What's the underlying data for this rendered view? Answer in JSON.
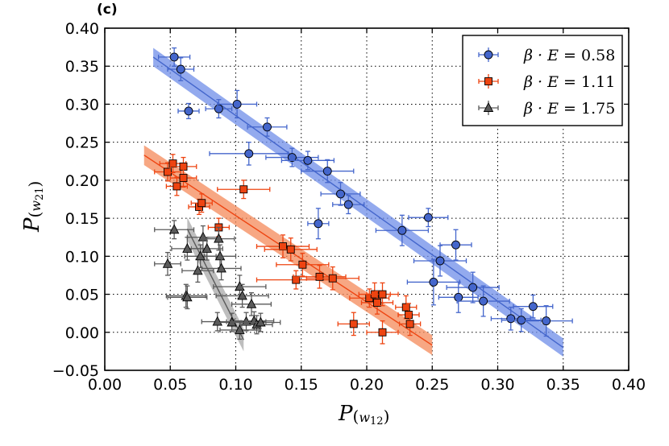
{
  "panel_label": "(c)",
  "chart_data": {
    "type": "scatter",
    "title": "",
    "xlabel": "P(w12)",
    "ylabel": "P(w21)",
    "xlim": [
      0.0,
      0.4
    ],
    "ylim": [
      -0.05,
      0.4
    ],
    "xticks": [
      0.0,
      0.05,
      0.1,
      0.15,
      0.2,
      0.25,
      0.3,
      0.35,
      0.4
    ],
    "yticks": [
      -0.05,
      0.0,
      0.05,
      0.1,
      0.15,
      0.2,
      0.25,
      0.3,
      0.35,
      0.4
    ],
    "xtick_labels": [
      "0.00",
      "0.05",
      "0.10",
      "0.15",
      "0.20",
      "0.25",
      "0.30",
      "0.35",
      "0.40"
    ],
    "ytick_labels": [
      "−0.05",
      "0.00",
      "0.05",
      "0.10",
      "0.15",
      "0.20",
      "0.25",
      "0.30",
      "0.35",
      "0.40"
    ],
    "grid": true,
    "legend_position": "top-right",
    "series": [
      {
        "name": "β·E = 0.58",
        "label_prefix": "β · E = ",
        "label_value": "0.58",
        "marker": "circle",
        "color": "#4466cc",
        "band_color": "#6f8ee8",
        "fit": {
          "x": [
            0.037,
            0.35
          ],
          "y": [
            0.362,
            -0.02
          ],
          "band_halfwidth": 0.012
        },
        "points": [
          {
            "x": 0.053,
            "y": 0.362,
            "xerr": 0.012,
            "yerr": 0.012
          },
          {
            "x": 0.058,
            "y": 0.346,
            "xerr": 0.01,
            "yerr": 0.015
          },
          {
            "x": 0.064,
            "y": 0.291,
            "xerr": 0.008,
            "yerr": 0.01
          },
          {
            "x": 0.087,
            "y": 0.294,
            "xerr": 0.01,
            "yerr": 0.012
          },
          {
            "x": 0.101,
            "y": 0.3,
            "xerr": 0.015,
            "yerr": 0.018
          },
          {
            "x": 0.124,
            "y": 0.27,
            "xerr": 0.015,
            "yerr": 0.012
          },
          {
            "x": 0.11,
            "y": 0.235,
            "xerr": 0.03,
            "yerr": 0.015
          },
          {
            "x": 0.143,
            "y": 0.23,
            "xerr": 0.02,
            "yerr": 0.012
          },
          {
            "x": 0.155,
            "y": 0.226,
            "xerr": 0.02,
            "yerr": 0.012
          },
          {
            "x": 0.17,
            "y": 0.212,
            "xerr": 0.02,
            "yerr": 0.015
          },
          {
            "x": 0.18,
            "y": 0.182,
            "xerr": 0.015,
            "yerr": 0.015
          },
          {
            "x": 0.186,
            "y": 0.168,
            "xerr": 0.012,
            "yerr": 0.012
          },
          {
            "x": 0.163,
            "y": 0.143,
            "xerr": 0.008,
            "yerr": 0.02
          },
          {
            "x": 0.227,
            "y": 0.134,
            "xerr": 0.02,
            "yerr": 0.02
          },
          {
            "x": 0.247,
            "y": 0.151,
            "xerr": 0.015,
            "yerr": 0.012
          },
          {
            "x": 0.268,
            "y": 0.115,
            "xerr": 0.012,
            "yerr": 0.02
          },
          {
            "x": 0.256,
            "y": 0.094,
            "xerr": 0.02,
            "yerr": 0.02
          },
          {
            "x": 0.251,
            "y": 0.066,
            "xerr": 0.02,
            "yerr": 0.03
          },
          {
            "x": 0.27,
            "y": 0.046,
            "xerr": 0.015,
            "yerr": 0.02
          },
          {
            "x": 0.281,
            "y": 0.059,
            "xerr": 0.02,
            "yerr": 0.02
          },
          {
            "x": 0.289,
            "y": 0.041,
            "xerr": 0.02,
            "yerr": 0.02
          },
          {
            "x": 0.31,
            "y": 0.018,
            "xerr": 0.015,
            "yerr": 0.015
          },
          {
            "x": 0.318,
            "y": 0.016,
            "xerr": 0.015,
            "yerr": 0.015
          },
          {
            "x": 0.327,
            "y": 0.034,
            "xerr": 0.015,
            "yerr": 0.015
          },
          {
            "x": 0.337,
            "y": 0.015,
            "xerr": 0.02,
            "yerr": 0.02
          }
        ]
      },
      {
        "name": "β·E = 1.11",
        "label_prefix": "β · E = ",
        "label_value": "1.11",
        "marker": "square",
        "color": "#ee4411",
        "band_color": "#f48a5a",
        "fit": {
          "x": [
            0.03,
            0.25
          ],
          "y": [
            0.233,
            -0.017
          ],
          "band_halfwidth": 0.013
        },
        "points": [
          {
            "x": 0.048,
            "y": 0.211,
            "xerr": 0.01,
            "yerr": 0.012
          },
          {
            "x": 0.052,
            "y": 0.222,
            "xerr": 0.01,
            "yerr": 0.012
          },
          {
            "x": 0.055,
            "y": 0.192,
            "xerr": 0.008,
            "yerr": 0.012
          },
          {
            "x": 0.06,
            "y": 0.218,
            "xerr": 0.01,
            "yerr": 0.012
          },
          {
            "x": 0.06,
            "y": 0.203,
            "xerr": 0.01,
            "yerr": 0.012
          },
          {
            "x": 0.072,
            "y": 0.165,
            "xerr": 0.008,
            "yerr": 0.01
          },
          {
            "x": 0.074,
            "y": 0.17,
            "xerr": 0.008,
            "yerr": 0.012
          },
          {
            "x": 0.087,
            "y": 0.138,
            "xerr": 0.008,
            "yerr": 0.012
          },
          {
            "x": 0.106,
            "y": 0.188,
            "xerr": 0.02,
            "yerr": 0.012
          },
          {
            "x": 0.136,
            "y": 0.113,
            "xerr": 0.02,
            "yerr": 0.015
          },
          {
            "x": 0.142,
            "y": 0.109,
            "xerr": 0.02,
            "yerr": 0.015
          },
          {
            "x": 0.151,
            "y": 0.089,
            "xerr": 0.02,
            "yerr": 0.015
          },
          {
            "x": 0.146,
            "y": 0.069,
            "xerr": 0.03,
            "yerr": 0.012
          },
          {
            "x": 0.164,
            "y": 0.073,
            "xerr": 0.02,
            "yerr": 0.015
          },
          {
            "x": 0.174,
            "y": 0.071,
            "xerr": 0.02,
            "yerr": 0.015
          },
          {
            "x": 0.202,
            "y": 0.045,
            "xerr": 0.015,
            "yerr": 0.012
          },
          {
            "x": 0.206,
            "y": 0.05,
            "xerr": 0.012,
            "yerr": 0.015
          },
          {
            "x": 0.208,
            "y": 0.039,
            "xerr": 0.012,
            "yerr": 0.015
          },
          {
            "x": 0.212,
            "y": 0.05,
            "xerr": 0.012,
            "yerr": 0.015
          },
          {
            "x": 0.19,
            "y": 0.011,
            "xerr": 0.012,
            "yerr": 0.015
          },
          {
            "x": 0.212,
            "y": 0.0,
            "xerr": 0.012,
            "yerr": 0.015
          },
          {
            "x": 0.23,
            "y": 0.033,
            "xerr": 0.008,
            "yerr": 0.015
          },
          {
            "x": 0.232,
            "y": 0.023,
            "xerr": 0.008,
            "yerr": 0.015
          },
          {
            "x": 0.233,
            "y": 0.011,
            "xerr": 0.008,
            "yerr": 0.015
          }
        ]
      },
      {
        "name": "β·E = 1.75",
        "label_prefix": "β · E = ",
        "label_value": "1.75",
        "marker": "triangle",
        "color": "#5a5a5a",
        "band_color": "#a8a8a8",
        "fit": {
          "x": [
            0.063,
            0.106
          ],
          "y": [
            0.136,
            -0.01
          ],
          "band_halfwidth": 0.015
        },
        "points": [
          {
            "x": 0.053,
            "y": 0.135,
            "xerr": 0.015,
            "yerr": 0.012
          },
          {
            "x": 0.048,
            "y": 0.09,
            "xerr": 0.01,
            "yerr": 0.015
          },
          {
            "x": 0.063,
            "y": 0.11,
            "xerr": 0.012,
            "yerr": 0.015
          },
          {
            "x": 0.062,
            "y": 0.048,
            "xerr": 0.015,
            "yerr": 0.015
          },
          {
            "x": 0.063,
            "y": 0.046,
            "xerr": 0.015,
            "yerr": 0.015
          },
          {
            "x": 0.071,
            "y": 0.081,
            "xerr": 0.012,
            "yerr": 0.015
          },
          {
            "x": 0.073,
            "y": 0.1,
            "xerr": 0.012,
            "yerr": 0.015
          },
          {
            "x": 0.075,
            "y": 0.125,
            "xerr": 0.012,
            "yerr": 0.015
          },
          {
            "x": 0.078,
            "y": 0.11,
            "xerr": 0.012,
            "yerr": 0.015
          },
          {
            "x": 0.087,
            "y": 0.123,
            "xerr": 0.012,
            "yerr": 0.015
          },
          {
            "x": 0.088,
            "y": 0.1,
            "xerr": 0.012,
            "yerr": 0.015
          },
          {
            "x": 0.089,
            "y": 0.084,
            "xerr": 0.015,
            "yerr": 0.015
          },
          {
            "x": 0.086,
            "y": 0.014,
            "xerr": 0.012,
            "yerr": 0.012
          },
          {
            "x": 0.097,
            "y": 0.013,
            "xerr": 0.012,
            "yerr": 0.012
          },
          {
            "x": 0.103,
            "y": 0.06,
            "xerr": 0.02,
            "yerr": 0.015
          },
          {
            "x": 0.105,
            "y": 0.048,
            "xerr": 0.02,
            "yerr": 0.015
          },
          {
            "x": 0.103,
            "y": 0.003,
            "xerr": 0.015,
            "yerr": 0.012
          },
          {
            "x": 0.108,
            "y": 0.014,
            "xerr": 0.015,
            "yerr": 0.012
          },
          {
            "x": 0.112,
            "y": 0.037,
            "xerr": 0.015,
            "yerr": 0.015
          },
          {
            "x": 0.114,
            "y": 0.015,
            "xerr": 0.015,
            "yerr": 0.012
          },
          {
            "x": 0.116,
            "y": 0.01,
            "xerr": 0.012,
            "yerr": 0.012
          },
          {
            "x": 0.119,
            "y": 0.013,
            "xerr": 0.015,
            "yerr": 0.012
          }
        ]
      }
    ]
  }
}
